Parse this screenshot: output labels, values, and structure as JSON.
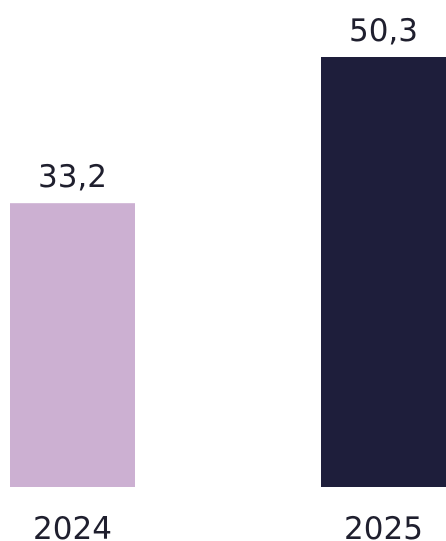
{
  "chart_data": {
    "type": "bar",
    "categories": [
      "2024",
      "2025"
    ],
    "values": [
      33.2,
      50.3
    ],
    "value_labels": [
      "33,2",
      "50,3"
    ],
    "colors": [
      "#ccb0d2",
      "#1e1e3b"
    ],
    "title": "",
    "xlabel": "",
    "ylabel": "",
    "ylim": [
      0,
      50.3
    ],
    "grid": false
  }
}
